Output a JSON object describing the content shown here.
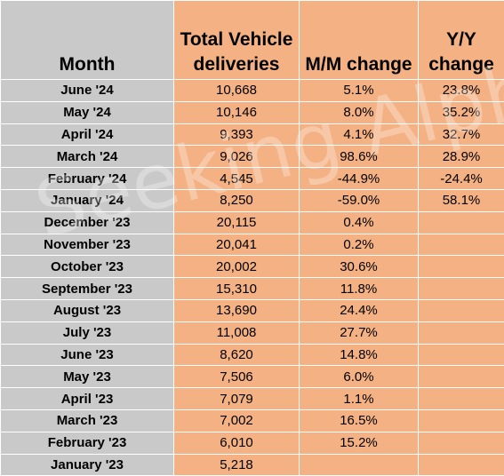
{
  "headers": {
    "month": "Month",
    "total": "Total Vehicle deliveries",
    "mm": "M/M change",
    "yy": "Y/Y change"
  },
  "rows": [
    {
      "month": "June '24",
      "total": "10,668",
      "mm": "5.1%",
      "yy": "23.8%"
    },
    {
      "month": "May '24",
      "total": "10,146",
      "mm": "8.0%",
      "yy": "35.2%"
    },
    {
      "month": "April '24",
      "total": "9,393",
      "mm": "4.1%",
      "yy": "32.7%"
    },
    {
      "month": "March '24",
      "total": "9,026",
      "mm": "98.6%",
      "yy": "28.9%"
    },
    {
      "month": "February '24",
      "total": "4,545",
      "mm": "-44.9%",
      "yy": "-24.4%"
    },
    {
      "month": "January '24",
      "total": "8,250",
      "mm": "-59.0%",
      "yy": "58.1%"
    },
    {
      "month": "December '23",
      "total": "20,115",
      "mm": "0.4%",
      "yy": ""
    },
    {
      "month": "November '23",
      "total": "20,041",
      "mm": "0.2%",
      "yy": ""
    },
    {
      "month": "October '23",
      "total": "20,002",
      "mm": "30.6%",
      "yy": ""
    },
    {
      "month": "September '23",
      "total": "15,310",
      "mm": "11.8%",
      "yy": ""
    },
    {
      "month": "August '23",
      "total": "13,690",
      "mm": "24.4%",
      "yy": ""
    },
    {
      "month": "July '23",
      "total": "11,008",
      "mm": "27.7%",
      "yy": ""
    },
    {
      "month": "June '23",
      "total": "8,620",
      "mm": "14.8%",
      "yy": ""
    },
    {
      "month": "May '23",
      "total": "7,506",
      "mm": "6.0%",
      "yy": ""
    },
    {
      "month": "April '23",
      "total": "7,079",
      "mm": "1.1%",
      "yy": ""
    },
    {
      "month": "March '23",
      "total": "7,002",
      "mm": "16.5%",
      "yy": ""
    },
    {
      "month": "February '23",
      "total": "6,010",
      "mm": "15.2%",
      "yy": ""
    },
    {
      "month": "January '23",
      "total": "5,218",
      "mm": "",
      "yy": ""
    }
  ],
  "watermark": "Seeking Alpha",
  "colors": {
    "month_column": "#c9c9c9",
    "value_columns": "#f4b183"
  }
}
